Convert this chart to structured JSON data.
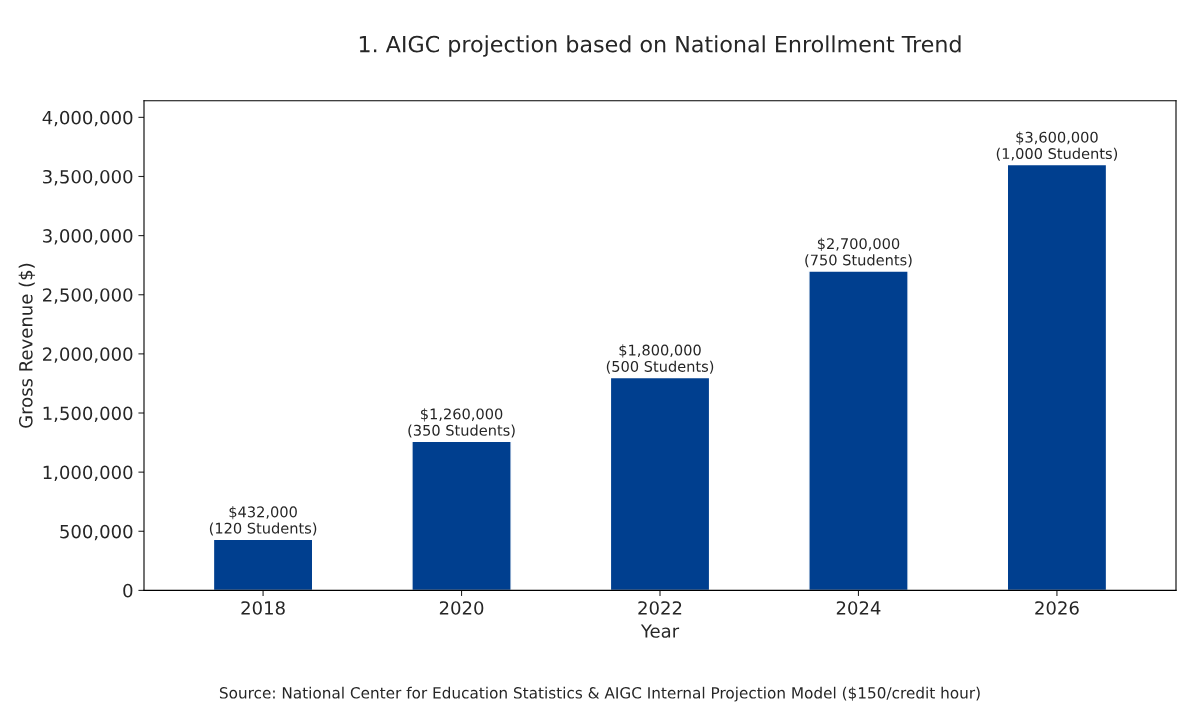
{
  "chart_data": {
    "type": "bar",
    "title": "1. AIGC projection based on National Enrollment Trend",
    "xlabel": "Year",
    "ylabel": "Gross Revenue ($)",
    "categories": [
      "2018",
      "2020",
      "2022",
      "2024",
      "2026"
    ],
    "values": [
      432000,
      1260000,
      1800000,
      2700000,
      3600000
    ],
    "value_labels": [
      "$432,000\n(120 Students)",
      "$1,260,000\n(350 Students)",
      "$1,800,000\n(500 Students)",
      "$2,700,000\n(750 Students)",
      "$3,600,000\n(1,000 Students)"
    ],
    "color": "#003f8f",
    "ylim": [
      0,
      4140000
    ],
    "yticks": [
      {
        "value": 0,
        "label": "0"
      },
      {
        "value": 500000,
        "label": "500,000"
      },
      {
        "value": 1000000,
        "label": "1,000,000"
      },
      {
        "value": 1500000,
        "label": "1,500,000"
      },
      {
        "value": 2000000,
        "label": "2,000,000"
      },
      {
        "value": 2500000,
        "label": "2,500,000"
      },
      {
        "value": 3000000,
        "label": "3,000,000"
      },
      {
        "value": 3500000,
        "label": "3,500,000"
      },
      {
        "value": 4000000,
        "label": "4,000,000"
      }
    ],
    "grid": false,
    "legend": false,
    "annotations": [
      "Source: National Center for Education Statistics & AIGC Internal Projection Model ($150/credit hour)"
    ]
  }
}
